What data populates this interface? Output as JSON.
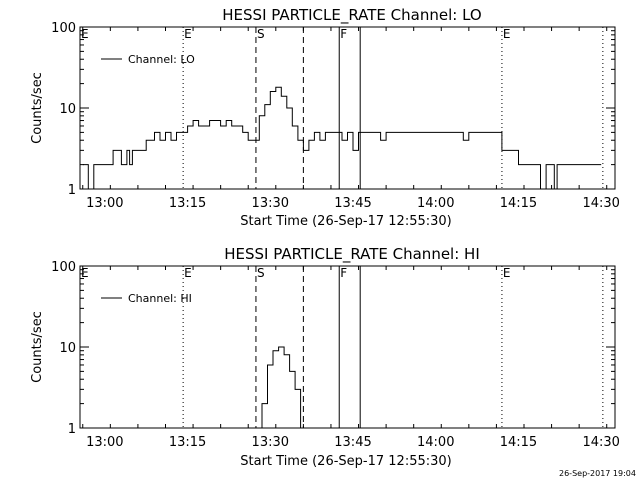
{
  "footer": {
    "timestamp": "26-Sep-2017 19:04"
  },
  "chart_data": [
    {
      "type": "line",
      "title": "HESSI PARTICLE_RATE Channel: LO",
      "xlabel": "Start Time (26-Sep-17 12:55:30)",
      "ylabel": "Counts/sec",
      "yscale": "log",
      "ylim": [
        1,
        100
      ],
      "xlim": [
        -5.5,
        91.5
      ],
      "x_unit": "minutes after 13:01",
      "x_tick_labels": [
        "13:00",
        "13:15",
        "13:30",
        "13:45",
        "14:00",
        "14:15",
        "14:30"
      ],
      "y_tick_labels": [
        "1",
        "10",
        "100"
      ],
      "legend": {
        "position": "top-left",
        "entries": [
          "Channel: LO"
        ]
      },
      "grid": false,
      "vertical_lines": [
        {
          "x": 13.2,
          "style": "dotted",
          "label": "E"
        },
        {
          "x": 26.4,
          "style": "dashed",
          "label": "S"
        },
        {
          "x": 35.0,
          "style": "dashed",
          "label": ""
        },
        {
          "x": 41.5,
          "style": "solid",
          "label": "F"
        },
        {
          "x": 45.3,
          "style": "solid",
          "label": ""
        },
        {
          "x": 71.0,
          "style": "dotted",
          "label": "E"
        },
        {
          "x": 89.3,
          "style": "dotted",
          "label": ""
        }
      ],
      "series": [
        {
          "name": "Channel: LO",
          "x": [
            -5,
            -4.5,
            -4,
            -3.5,
            -3,
            -1,
            0,
            0.5,
            1,
            2,
            3,
            3.5,
            4,
            5,
            6,
            6.5,
            7,
            8,
            9,
            10,
            11,
            12,
            13,
            14,
            15,
            16,
            17,
            18,
            19,
            20,
            21,
            22,
            23,
            24,
            25,
            26,
            27,
            28,
            29,
            30,
            31,
            32,
            33,
            34,
            35,
            36,
            37,
            38,
            39,
            40,
            41,
            42,
            43,
            44,
            45,
            46,
            47,
            48,
            49,
            50,
            51,
            52,
            53,
            54,
            55,
            56,
            57,
            58,
            59,
            60,
            61,
            62,
            63,
            64,
            65,
            66,
            67,
            68,
            69,
            70,
            71,
            72,
            73,
            74,
            75,
            76,
            77,
            78,
            79,
            80,
            80.5,
            81,
            82,
            83,
            84,
            85,
            86,
            87,
            88,
            89
          ],
          "y": [
            2,
            2,
            1,
            1,
            2,
            2,
            2,
            3,
            3,
            2,
            3,
            2,
            3,
            3,
            3,
            4,
            4,
            5,
            4,
            5,
            4,
            5,
            5,
            6,
            7,
            6,
            6,
            7,
            7,
            6,
            7,
            6,
            6,
            5,
            4,
            4,
            8,
            11,
            16,
            18,
            14,
            10,
            6,
            4,
            3,
            4,
            5,
            4,
            5,
            5,
            5,
            4,
            5,
            3,
            5,
            5,
            5,
            5,
            4,
            5,
            5,
            5,
            5,
            5,
            5,
            5,
            5,
            5,
            5,
            5,
            5,
            5,
            5,
            4,
            5,
            5,
            5,
            5,
            5,
            5,
            3,
            3,
            3,
            2,
            2,
            2,
            2,
            1,
            2,
            2,
            1,
            2,
            2,
            2,
            2,
            2,
            2,
            2,
            2,
            2
          ]
        }
      ]
    },
    {
      "type": "line",
      "title": "HESSI PARTICLE_RATE Channel: HI",
      "xlabel": "Start Time (26-Sep-17 12:55:30)",
      "ylabel": "Counts/sec",
      "yscale": "log",
      "ylim": [
        1,
        100
      ],
      "xlim": [
        -5.5,
        91.5
      ],
      "x_unit": "minutes after 13:01",
      "x_tick_labels": [
        "13:00",
        "13:15",
        "13:30",
        "13:45",
        "14:00",
        "14:15",
        "14:30"
      ],
      "y_tick_labels": [
        "1",
        "10",
        "100"
      ],
      "legend": {
        "position": "top-left",
        "entries": [
          "Channel: HI"
        ]
      },
      "grid": false,
      "vertical_lines": [
        {
          "x": 13.2,
          "style": "dotted",
          "label": "E"
        },
        {
          "x": 26.4,
          "style": "dashed",
          "label": "S"
        },
        {
          "x": 35.0,
          "style": "dashed",
          "label": ""
        },
        {
          "x": 41.5,
          "style": "solid",
          "label": "F"
        },
        {
          "x": 45.3,
          "style": "solid",
          "label": ""
        },
        {
          "x": 71.0,
          "style": "dotted",
          "label": "E"
        },
        {
          "x": 89.3,
          "style": "dotted",
          "label": ""
        }
      ],
      "series": [
        {
          "name": "Channel: HI",
          "x": [
            26.5,
            27.5,
            28.5,
            29.5,
            30.5,
            31.5,
            32.5,
            33.5,
            34.5
          ],
          "y": [
            1,
            2,
            6,
            9,
            10,
            8,
            5,
            3,
            1
          ]
        }
      ]
    }
  ]
}
